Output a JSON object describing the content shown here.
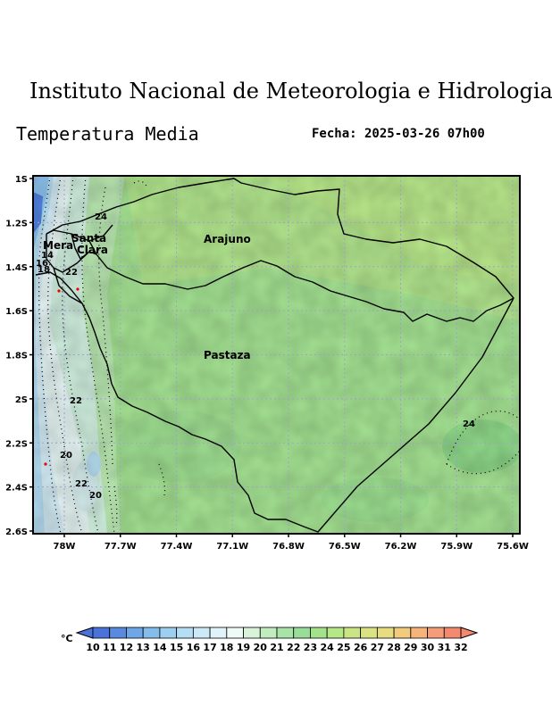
{
  "header": {
    "institute": "Instituto Nacional de Meteorologia e Hidrologia",
    "variable": "Temperatura Media",
    "date_label": "Fecha: 2025-03-26 07h00"
  },
  "map": {
    "lat_labels": [
      "1S",
      "1.2S",
      "1.4S",
      "1.6S",
      "1.8S",
      "2S",
      "2.2S",
      "2.4S",
      "2.6S"
    ],
    "lon_labels": [
      "78W",
      "77.7W",
      "77.4W",
      "77.1W",
      "76.8W",
      "76.5W",
      "76.2W",
      "75.9W",
      "75.6W"
    ],
    "regions": [
      "Arajuno",
      "Pastaza",
      "Santa Clara",
      "Mera"
    ],
    "contour_labels": [
      "24",
      "14",
      "16",
      "18",
      "22",
      "22",
      "20",
      "22",
      "20",
      "24"
    ]
  },
  "legend": {
    "unit": "°C",
    "values": [
      "10",
      "11",
      "12",
      "13",
      "14",
      "15",
      "16",
      "17",
      "18",
      "19",
      "20",
      "21",
      "22",
      "23",
      "24",
      "25",
      "26",
      "27",
      "28",
      "29",
      "30",
      "31",
      "32"
    ],
    "colors": [
      "#4a72d8",
      "#5a8ae0",
      "#6ea6e6",
      "#84bdeb",
      "#9ccff0",
      "#b4def4",
      "#cbe9f7",
      "#e0f3fa",
      "#eefaf5",
      "#d8f3d8",
      "#c0ecc0",
      "#a8e4a8",
      "#98de98",
      "#a2e28a",
      "#b6e887",
      "#cae684",
      "#dae383",
      "#e8dc80",
      "#f2cc7c",
      "#f6b47a",
      "#f69c78",
      "#f38a70"
    ]
  }
}
